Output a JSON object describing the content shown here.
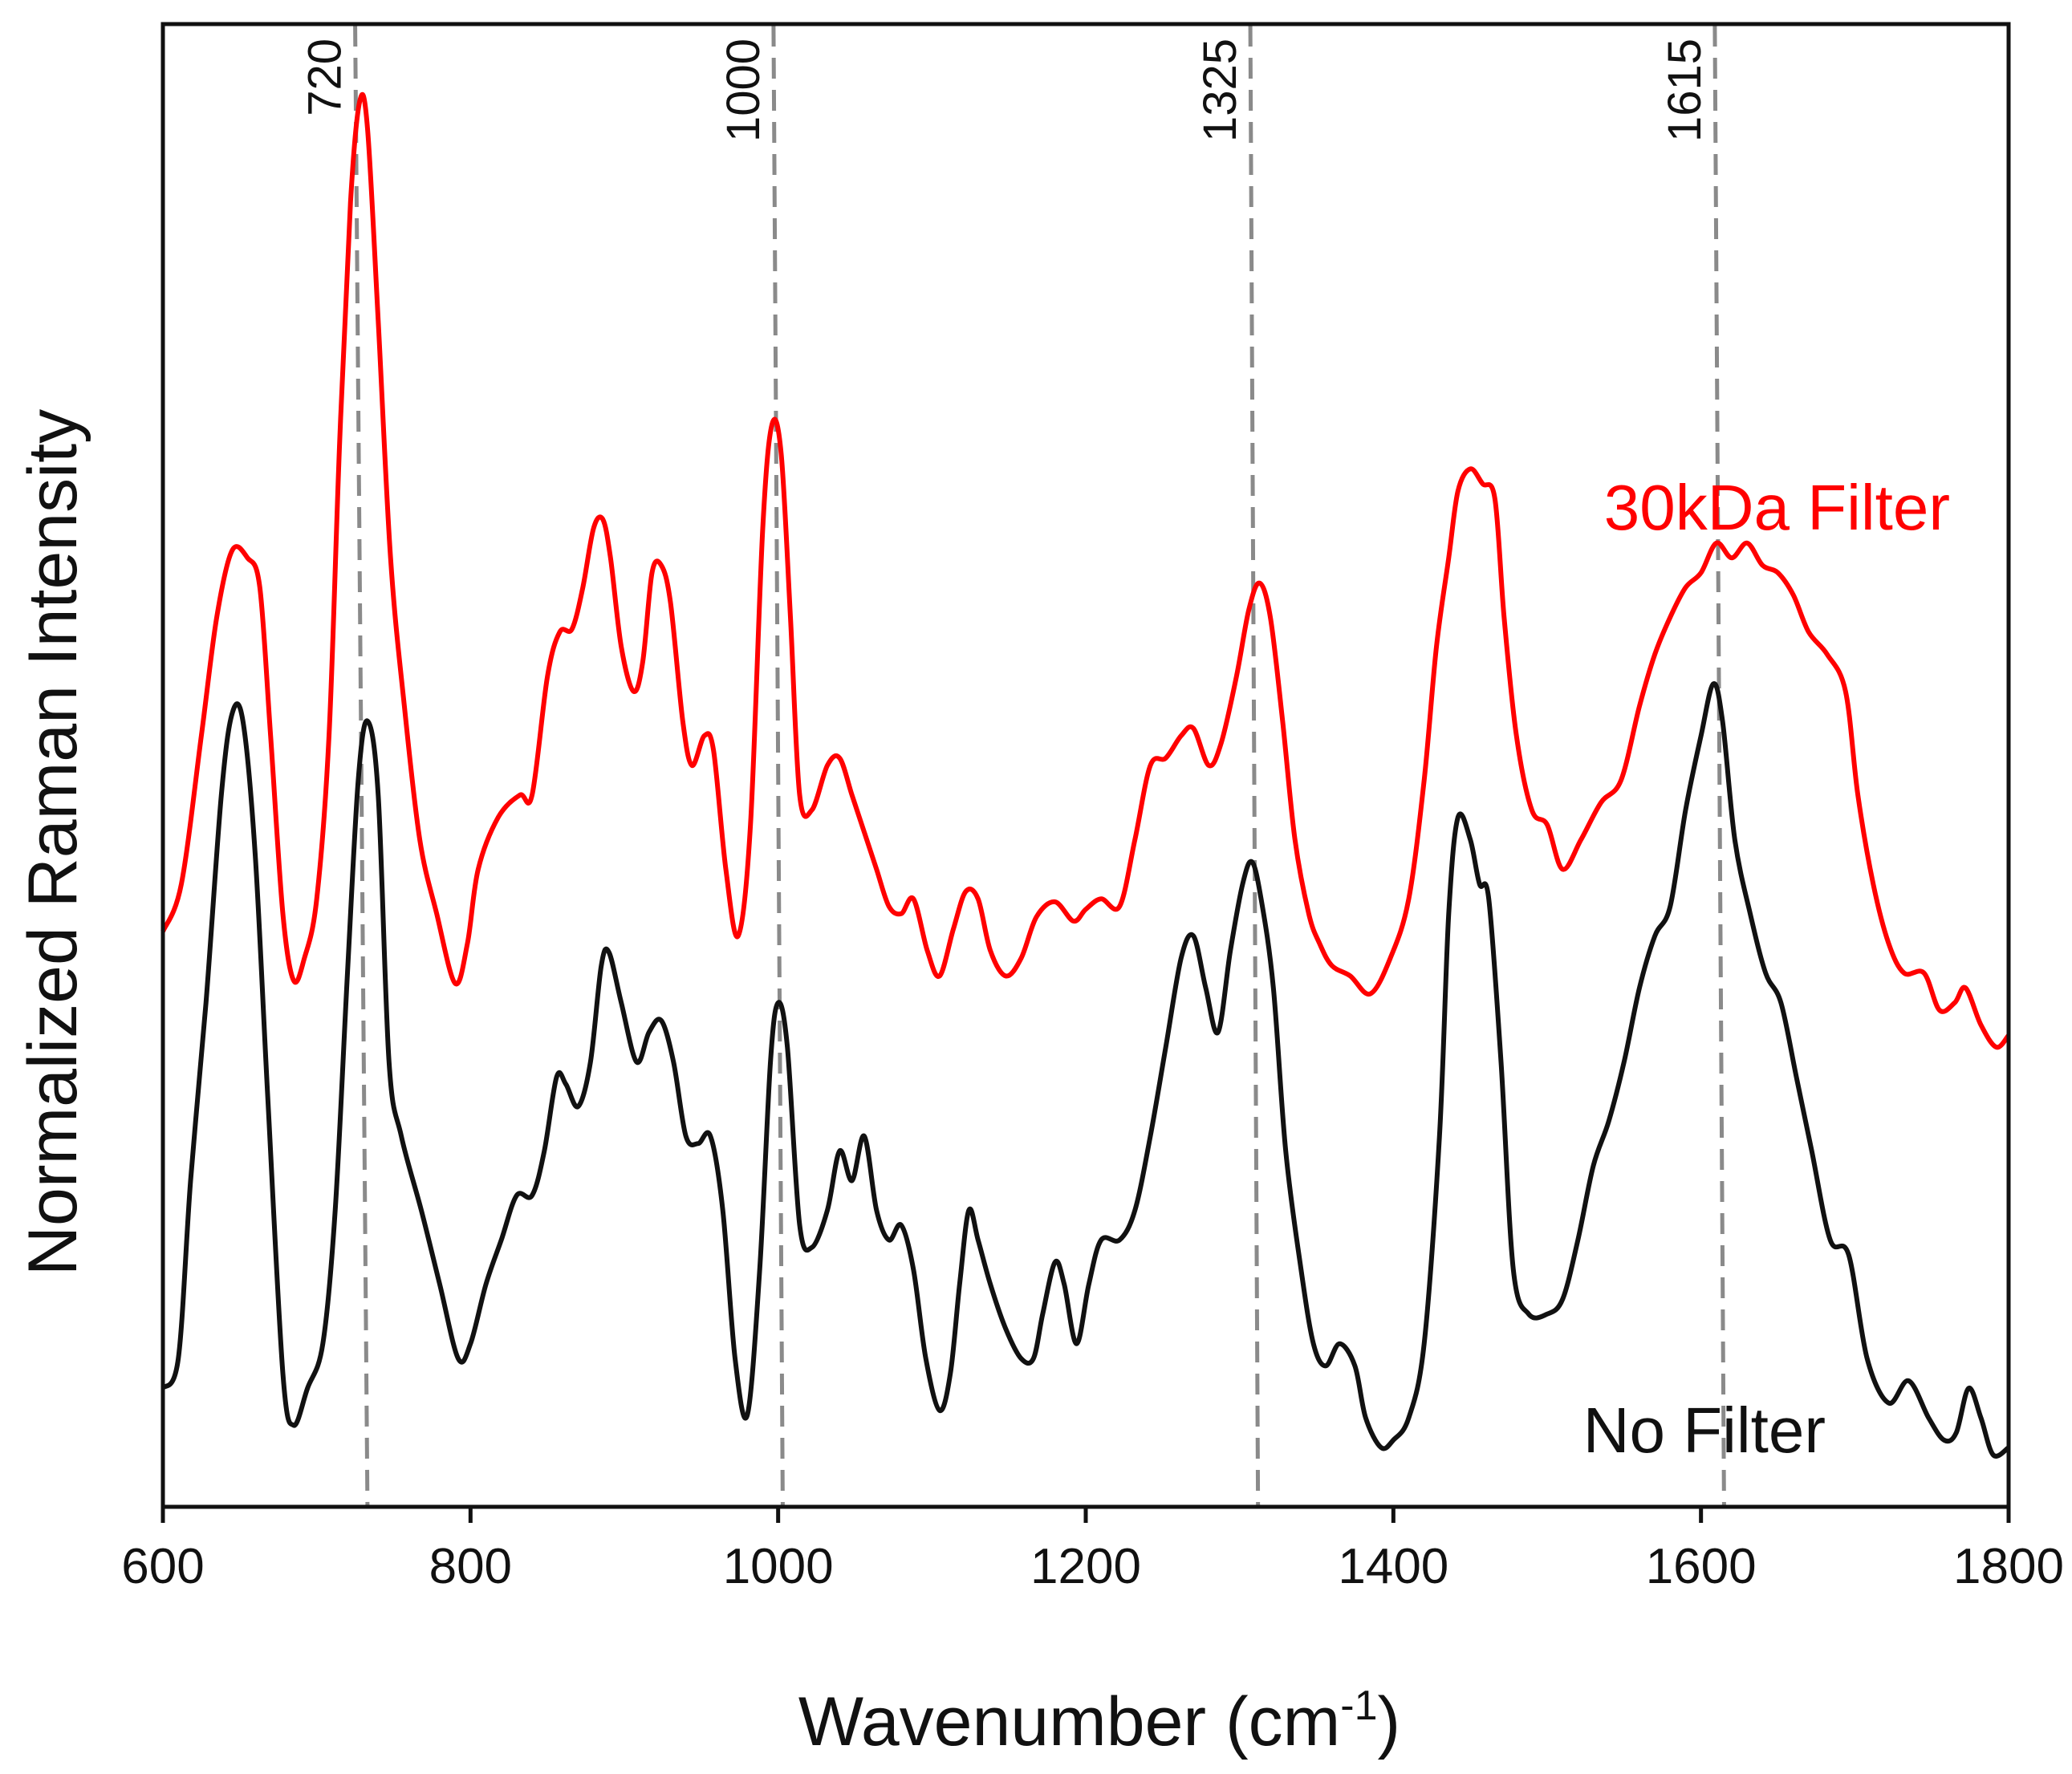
{
  "chart_data": {
    "type": "line",
    "title": "",
    "xlabel": "Wavenumber (cm",
    "xlabel_sup": "-1",
    "xlabel_close": ")",
    "ylabel": "Normalized Raman Intensity",
    "xlim": [
      600,
      1800
    ],
    "ylim": [
      0,
      100
    ],
    "grid": false,
    "x_ticks": [
      "600",
      "800",
      "1000",
      "1200",
      "1400",
      "1600",
      "1800"
    ],
    "reference_lines": [
      {
        "label": "720",
        "x_top": 725,
        "x_bottom": 733
      },
      {
        "label": "1000",
        "x_top": 997,
        "x_bottom": 1003
      },
      {
        "label": "1325",
        "x_top": 1307,
        "x_bottom": 1312
      },
      {
        "label": "1615",
        "x_top": 1609,
        "x_bottom": 1615
      }
    ],
    "series": [
      {
        "name": "30kDa Filter",
        "color": "#ff0000",
        "points": [
          [
            600,
            38.8
          ],
          [
            612,
            42
          ],
          [
            625,
            52
          ],
          [
            635,
            60
          ],
          [
            645,
            64.5
          ],
          [
            655,
            64
          ],
          [
            663,
            62
          ],
          [
            670,
            52
          ],
          [
            678,
            40
          ],
          [
            685,
            35.5
          ],
          [
            692,
            37
          ],
          [
            700,
            41
          ],
          [
            708,
            52
          ],
          [
            715,
            72
          ],
          [
            722,
            88
          ],
          [
            728,
            94.8
          ],
          [
            733,
            93
          ],
          [
            740,
            80
          ],
          [
            748,
            64
          ],
          [
            757,
            54
          ],
          [
            767,
            45
          ],
          [
            778,
            40
          ],
          [
            790,
            35.3
          ],
          [
            798,
            38
          ],
          [
            805,
            43
          ],
          [
            818,
            46.5
          ],
          [
            832,
            48
          ],
          [
            840,
            48
          ],
          [
            850,
            56
          ],
          [
            858,
            59
          ],
          [
            866,
            59.2
          ],
          [
            873,
            62
          ],
          [
            880,
            66
          ],
          [
            886,
            66.6
          ],
          [
            891,
            64
          ],
          [
            898,
            58
          ],
          [
            906,
            55
          ],
          [
            912,
            57
          ],
          [
            918,
            63
          ],
          [
            924,
            63.5
          ],
          [
            930,
            61
          ],
          [
            938,
            53
          ],
          [
            944,
            50
          ],
          [
            952,
            52
          ],
          [
            958,
            51
          ],
          [
            966,
            43
          ],
          [
            974,
            38.5
          ],
          [
            982,
            46
          ],
          [
            990,
            66
          ],
          [
            996,
            73
          ],
          [
            1002,
            71
          ],
          [
            1008,
            60
          ],
          [
            1014,
            48
          ],
          [
            1022,
            47
          ],
          [
            1032,
            50
          ],
          [
            1040,
            50.5
          ],
          [
            1048,
            48
          ],
          [
            1056,
            45.5
          ],
          [
            1064,
            43
          ],
          [
            1072,
            40.5
          ],
          [
            1080,
            40
          ],
          [
            1088,
            41
          ],
          [
            1097,
            37.5
          ],
          [
            1105,
            35.8
          ],
          [
            1114,
            39
          ],
          [
            1122,
            41.5
          ],
          [
            1130,
            41
          ],
          [
            1138,
            37.5
          ],
          [
            1148,
            35.8
          ],
          [
            1158,
            37
          ],
          [
            1168,
            39.8
          ],
          [
            1180,
            40.8
          ],
          [
            1192,
            39.5
          ],
          [
            1200,
            40.3
          ],
          [
            1210,
            41
          ],
          [
            1222,
            40.5
          ],
          [
            1232,
            45
          ],
          [
            1242,
            50
          ],
          [
            1252,
            50.5
          ],
          [
            1262,
            52
          ],
          [
            1270,
            52.5
          ],
          [
            1280,
            50
          ],
          [
            1288,
            51.5
          ],
          [
            1298,
            56
          ],
          [
            1306,
            60.5
          ],
          [
            1313,
            62.3
          ],
          [
            1320,
            60
          ],
          [
            1328,
            53
          ],
          [
            1336,
            45
          ],
          [
            1345,
            40
          ],
          [
            1352,
            38
          ],
          [
            1360,
            36.5
          ],
          [
            1372,
            35.8
          ],
          [
            1385,
            34.6
          ],
          [
            1398,
            37
          ],
          [
            1410,
            41
          ],
          [
            1420,
            49
          ],
          [
            1428,
            58
          ],
          [
            1436,
            64
          ],
          [
            1442,
            68.5
          ],
          [
            1450,
            70
          ],
          [
            1458,
            69
          ],
          [
            1466,
            68
          ],
          [
            1472,
            60
          ],
          [
            1480,
            52
          ],
          [
            1490,
            47
          ],
          [
            1500,
            46
          ],
          [
            1510,
            43
          ],
          [
            1522,
            45
          ],
          [
            1535,
            47.5
          ],
          [
            1548,
            49
          ],
          [
            1560,
            54
          ],
          [
            1570,
            57.5
          ],
          [
            1580,
            60
          ],
          [
            1590,
            62
          ],
          [
            1600,
            63
          ],
          [
            1610,
            65
          ],
          [
            1620,
            64
          ],
          [
            1630,
            65
          ],
          [
            1640,
            63.5
          ],
          [
            1650,
            63
          ],
          [
            1660,
            61.5
          ],
          [
            1670,
            59
          ],
          [
            1682,
            57.5
          ],
          [
            1694,
            55
          ],
          [
            1702,
            48
          ],
          [
            1712,
            42
          ],
          [
            1722,
            38
          ],
          [
            1732,
            36
          ],
          [
            1745,
            36
          ],
          [
            1755,
            33.5
          ],
          [
            1765,
            34
          ],
          [
            1772,
            35
          ],
          [
            1782,
            32.5
          ],
          [
            1792,
            31
          ],
          [
            1800,
            31.8
          ]
        ]
      },
      {
        "name": "No Filter",
        "color": "#111111",
        "points": [
          [
            600,
            8
          ],
          [
            610,
            10
          ],
          [
            618,
            22
          ],
          [
            628,
            34
          ],
          [
            638,
            48
          ],
          [
            645,
            53.5
          ],
          [
            652,
            53
          ],
          [
            660,
            44
          ],
          [
            668,
            28
          ],
          [
            678,
            9
          ],
          [
            685,
            5.5
          ],
          [
            694,
            8
          ],
          [
            704,
            11
          ],
          [
            712,
            20
          ],
          [
            720,
            36
          ],
          [
            727,
            49
          ],
          [
            733,
            53
          ],
          [
            740,
            48
          ],
          [
            747,
            30
          ],
          [
            755,
            25
          ],
          [
            768,
            20
          ],
          [
            780,
            15
          ],
          [
            792,
            10
          ],
          [
            800,
            11
          ],
          [
            810,
            15
          ],
          [
            820,
            18
          ],
          [
            830,
            21
          ],
          [
            840,
            21
          ],
          [
            848,
            24
          ],
          [
            856,
            29
          ],
          [
            862,
            28.5
          ],
          [
            870,
            27
          ],
          [
            878,
            30
          ],
          [
            885,
            36.5
          ],
          [
            890,
            37.4
          ],
          [
            898,
            34
          ],
          [
            908,
            30
          ],
          [
            916,
            32
          ],
          [
            924,
            32.8
          ],
          [
            932,
            30
          ],
          [
            940,
            25
          ],
          [
            948,
            24.5
          ],
          [
            956,
            25
          ],
          [
            964,
            20
          ],
          [
            972,
            10
          ],
          [
            980,
            6.2
          ],
          [
            988,
            16
          ],
          [
            995,
            30
          ],
          [
            1000,
            34
          ],
          [
            1006,
            31
          ],
          [
            1014,
            19
          ],
          [
            1022,
            17.5
          ],
          [
            1032,
            20
          ],
          [
            1040,
            24
          ],
          [
            1048,
            22
          ],
          [
            1056,
            25
          ],
          [
            1064,
            20
          ],
          [
            1072,
            18
          ],
          [
            1080,
            19
          ],
          [
            1088,
            16
          ],
          [
            1096,
            10
          ],
          [
            1105,
            6.5
          ],
          [
            1112,
            9
          ],
          [
            1118,
            15
          ],
          [
            1124,
            20
          ],
          [
            1130,
            18
          ],
          [
            1138,
            15
          ],
          [
            1148,
            12
          ],
          [
            1158,
            10
          ],
          [
            1166,
            10
          ],
          [
            1172,
            13
          ],
          [
            1180,
            16.5
          ],
          [
            1186,
            15
          ],
          [
            1194,
            11
          ],
          [
            1202,
            15
          ],
          [
            1210,
            18
          ],
          [
            1222,
            18
          ],
          [
            1232,
            20
          ],
          [
            1242,
            25
          ],
          [
            1252,
            31
          ],
          [
            1262,
            37
          ],
          [
            1270,
            38.5
          ],
          [
            1278,
            35
          ],
          [
            1286,
            32
          ],
          [
            1294,
            37.5
          ],
          [
            1302,
            42
          ],
          [
            1308,
            43.5
          ],
          [
            1314,
            41
          ],
          [
            1322,
            35
          ],
          [
            1330,
            24
          ],
          [
            1340,
            16
          ],
          [
            1348,
            11
          ],
          [
            1356,
            9.5
          ],
          [
            1365,
            11
          ],
          [
            1375,
            9.5
          ],
          [
            1382,
            6
          ],
          [
            1392,
            4
          ],
          [
            1400,
            4.5
          ],
          [
            1410,
            6
          ],
          [
            1420,
            11
          ],
          [
            1430,
            25
          ],
          [
            1436,
            40
          ],
          [
            1442,
            46.5
          ],
          [
            1450,
            45
          ],
          [
            1456,
            42
          ],
          [
            1462,
            41
          ],
          [
            1470,
            30
          ],
          [
            1478,
            16
          ],
          [
            1488,
            13
          ],
          [
            1500,
            13
          ],
          [
            1510,
            14
          ],
          [
            1520,
            18
          ],
          [
            1530,
            23
          ],
          [
            1540,
            26
          ],
          [
            1550,
            30
          ],
          [
            1560,
            35
          ],
          [
            1570,
            38.5
          ],
          [
            1580,
            40.5
          ],
          [
            1590,
            47
          ],
          [
            1600,
            52
          ],
          [
            1608,
            55.5
          ],
          [
            1614,
            53
          ],
          [
            1622,
            45
          ],
          [
            1632,
            40
          ],
          [
            1642,
            36
          ],
          [
            1652,
            34
          ],
          [
            1662,
            29
          ],
          [
            1672,
            24
          ],
          [
            1684,
            18
          ],
          [
            1696,
            17
          ],
          [
            1708,
            10
          ],
          [
            1722,
            7
          ],
          [
            1735,
            8.5
          ],
          [
            1748,
            6
          ],
          [
            1758,
            4.5
          ],
          [
            1766,
            5
          ],
          [
            1774,
            8
          ],
          [
            1782,
            6
          ],
          [
            1790,
            3.5
          ],
          [
            1800,
            4
          ]
        ]
      }
    ],
    "annotations": [
      {
        "text": "30kDa Filter",
        "color": "#ff0000",
        "placement": "upper-right"
      },
      {
        "text": "No Filter",
        "color": "#111111",
        "placement": "lower-right"
      }
    ]
  }
}
